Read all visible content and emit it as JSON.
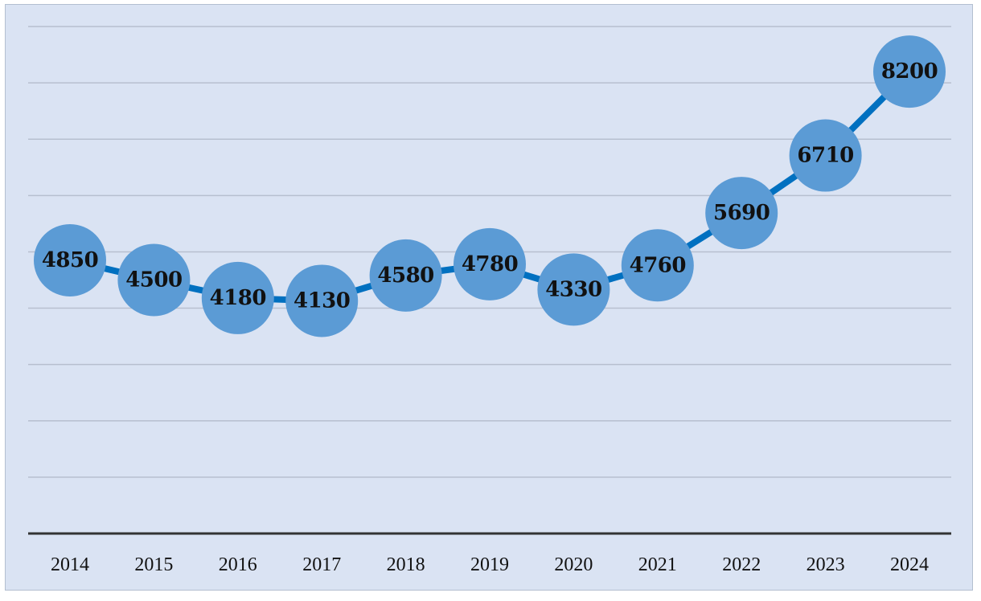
{
  "chart_data": {
    "type": "line",
    "categories": [
      "2014",
      "2015",
      "2016",
      "2017",
      "2018",
      "2019",
      "2020",
      "2021",
      "2022",
      "2023",
      "2024"
    ],
    "values": [
      4850,
      4500,
      4180,
      4130,
      4580,
      4780,
      4330,
      4760,
      5690,
      6710,
      8200
    ],
    "title": "",
    "xlabel": "",
    "ylabel": "",
    "ylim": [
      0,
      9000
    ],
    "grid": true,
    "legend": "none",
    "data_labels": true,
    "colors": {
      "background": "#dae3f3",
      "line": "#0070c0",
      "marker": "#5b9bd5",
      "label_text": "#111111",
      "axis": "#333333"
    }
  }
}
